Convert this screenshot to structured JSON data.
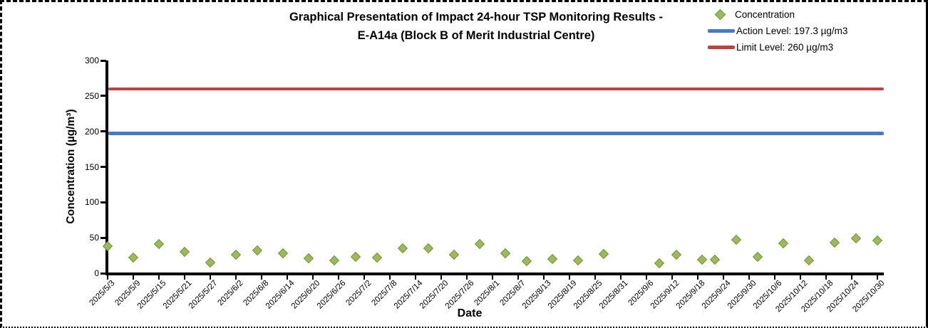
{
  "chart_data": {
    "type": "scatter",
    "title_lines": [
      "Graphical Presentation of Impact 24-hour TSP Monitoring Results -",
      "E-A14a (Block B of Merit Industrial Centre)"
    ],
    "xlabel": "Date",
    "ylabel": "Concentration (µg/m³)",
    "ylim": [
      0,
      300
    ],
    "y_ticks": [
      0,
      50,
      100,
      150,
      200,
      250,
      300
    ],
    "x_tick_labels": [
      "2025/5/3",
      "2025/5/9",
      "2025/5/15",
      "2025/5/21",
      "2025/5/27",
      "2025/6/2",
      "2025/6/8",
      "2025/6/14",
      "2025/6/20",
      "2025/6/26",
      "2025/7/2",
      "2025/7/8",
      "2025/7/14",
      "2025/7/20",
      "2025/7/26",
      "2025/8/1",
      "2025/8/7",
      "2025/8/13",
      "2025/8/19",
      "2025/8/25",
      "2025/8/31",
      "2025/9/6",
      "2025/9/12",
      "2025/9/18",
      "2025/9/24",
      "2025/9/30",
      "2025/10/6",
      "2025/10/12",
      "2025/10/18",
      "2025/10/24",
      "2025/10/30"
    ],
    "grid": false,
    "legend_position": "top-right",
    "axis_color": "#000000",
    "series": [
      {
        "name": "Concentration",
        "type": "scatter",
        "marker": "diamond",
        "color": "#9BBB59",
        "marker_border_color": "#77933C",
        "points": [
          {
            "date": "2025/5/3",
            "value": 38
          },
          {
            "date": "2025/5/9",
            "value": 22
          },
          {
            "date": "2025/5/15",
            "value": 41
          },
          {
            "date": "2025/5/21",
            "value": 30
          },
          {
            "date": "2025/5/27",
            "value": 15
          },
          {
            "date": "2025/6/2",
            "value": 26
          },
          {
            "date": "2025/6/7",
            "value": 32
          },
          {
            "date": "2025/6/13",
            "value": 28
          },
          {
            "date": "2025/6/19",
            "value": 21
          },
          {
            "date": "2025/6/25",
            "value": 18
          },
          {
            "date": "2025/6/30",
            "value": 23
          },
          {
            "date": "2025/7/5",
            "value": 22
          },
          {
            "date": "2025/7/11",
            "value": 35
          },
          {
            "date": "2025/7/17",
            "value": 35
          },
          {
            "date": "2025/7/23",
            "value": 26
          },
          {
            "date": "2025/7/29",
            "value": 41
          },
          {
            "date": "2025/8/4",
            "value": 28
          },
          {
            "date": "2025/8/9",
            "value": 17
          },
          {
            "date": "2025/8/15",
            "value": 20
          },
          {
            "date": "2025/8/21",
            "value": 18
          },
          {
            "date": "2025/8/27",
            "value": 27
          },
          {
            "date": "2025/9/9",
            "value": 14
          },
          {
            "date": "2025/9/13",
            "value": 26
          },
          {
            "date": "2025/9/19",
            "value": 19
          },
          {
            "date": "2025/9/22",
            "value": 19
          },
          {
            "date": "2025/9/27",
            "value": 47
          },
          {
            "date": "2025/10/2",
            "value": 23
          },
          {
            "date": "2025/10/8",
            "value": 42
          },
          {
            "date": "2025/10/14",
            "value": 18
          },
          {
            "date": "2025/10/20",
            "value": 43
          },
          {
            "date": "2025/10/25",
            "value": 49
          },
          {
            "date": "2025/10/30",
            "value": 46
          }
        ]
      },
      {
        "name": "Action Level: 197.3 µg/m3",
        "type": "hline",
        "value": 197.3,
        "color": "#4678CE"
      },
      {
        "name": "Limit Level: 260 µg/m3",
        "type": "hline",
        "value": 260,
        "color": "#C0403A"
      }
    ]
  }
}
